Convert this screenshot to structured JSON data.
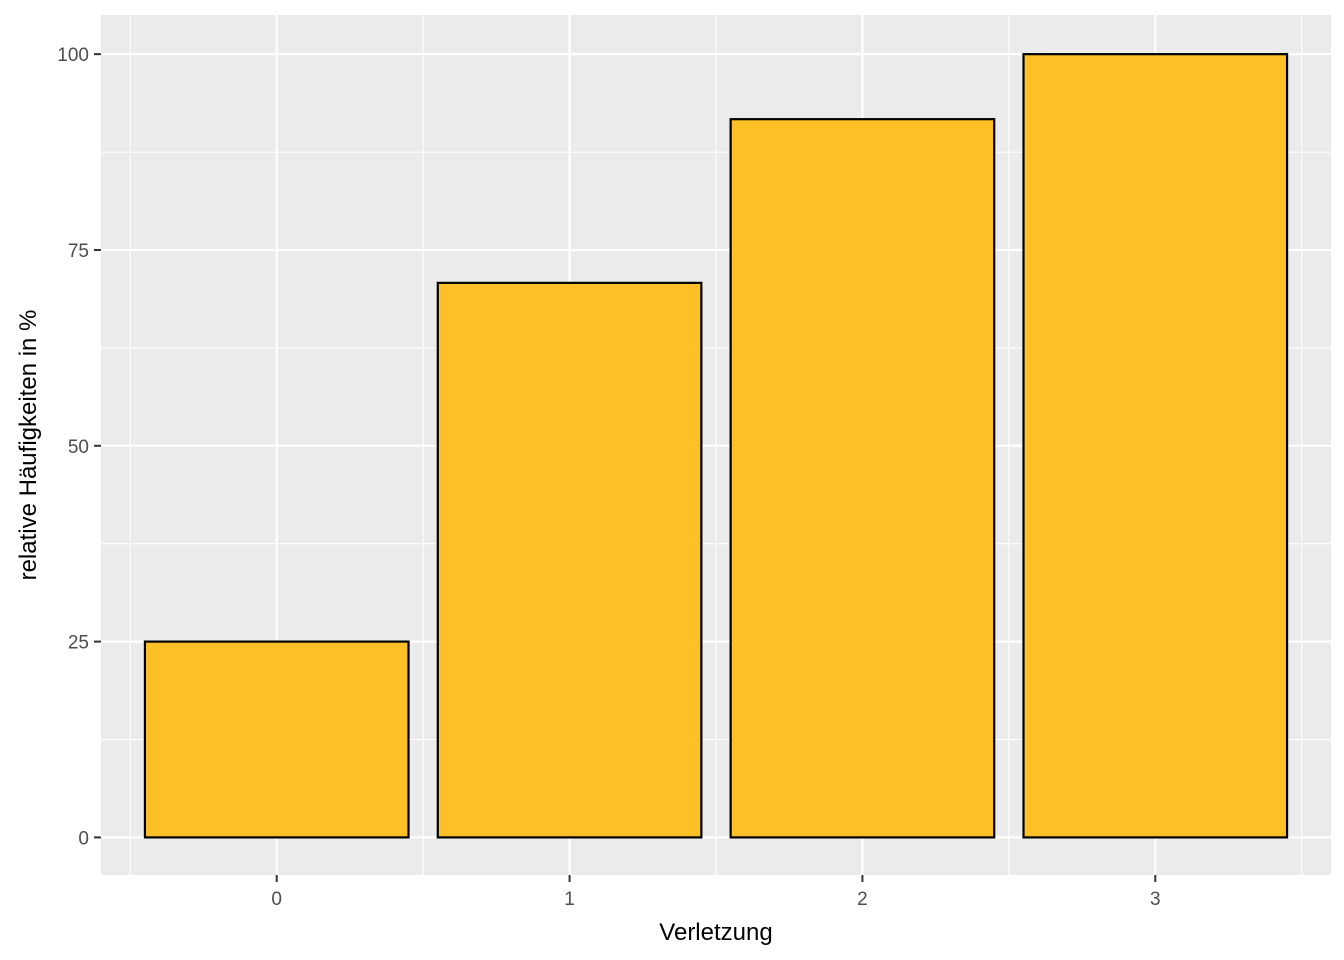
{
  "chart_data": {
    "type": "bar",
    "categories": [
      "0",
      "1",
      "2",
      "3"
    ],
    "values": [
      25,
      70.8,
      91.7,
      100
    ],
    "xlabel": "Verletzung",
    "ylabel": "relative Häufigkeiten in %",
    "ylim": [
      -4.8,
      105
    ],
    "yticks": [
      0,
      25,
      50,
      75,
      100
    ],
    "ytick_labels": [
      "0",
      "25",
      "50",
      "75",
      "100"
    ],
    "grid": true,
    "colors": {
      "bar_fill": "#FEC027",
      "bar_stroke": "#000000",
      "panel_background": "#EBEBEB",
      "grid_major": "#FFFFFF",
      "grid_minor": "#F5F5F5",
      "tick_text": "#4D4D4D"
    }
  }
}
